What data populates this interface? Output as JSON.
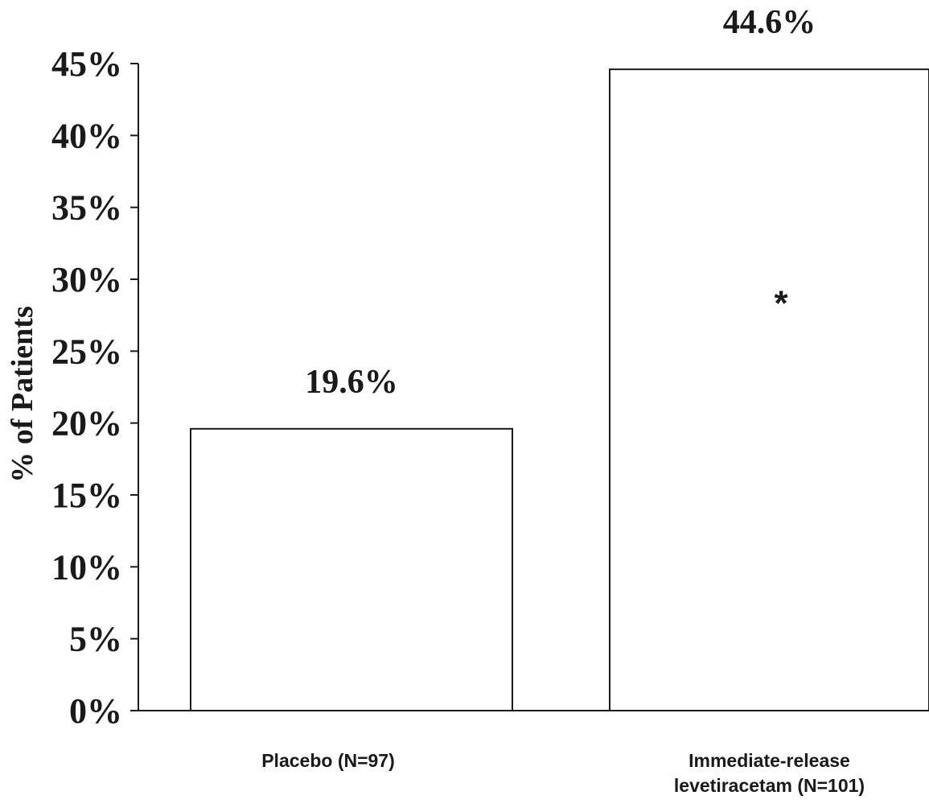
{
  "chart_data": {
    "type": "bar",
    "categories": [
      [
        "Placebo (N=97)"
      ],
      [
        "Immediate-release",
        "levetiracetam (N=101)"
      ]
    ],
    "values": [
      19.6,
      44.6
    ],
    "value_labels": [
      "19.6%",
      "44.6%"
    ],
    "bar_annotations": [
      "",
      "*"
    ],
    "ylabel": "% of Patients",
    "ylim": [
      0,
      45
    ],
    "yticks": [
      0,
      5,
      10,
      15,
      20,
      25,
      30,
      35,
      40,
      45
    ],
    "ytick_labels": [
      "0%",
      "5%",
      "10%",
      "15%",
      "20%",
      "25%",
      "30%",
      "35%",
      "40%",
      "45%"
    ],
    "grid": false,
    "legend": "none",
    "colors": {
      "bar_fill": "#ffffff",
      "bar_stroke": "#1a1a1a",
      "axis": "#1a1a1a"
    }
  }
}
